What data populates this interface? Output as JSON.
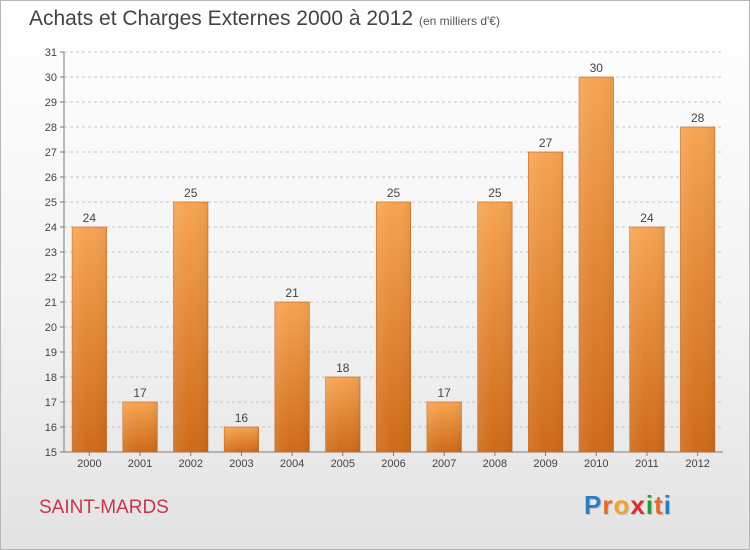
{
  "header": {
    "title": "Achats et Charges Externes 2000 à 2012",
    "unit": "(en milliers d'€)"
  },
  "footer": {
    "location": "SAINT-MARDS",
    "logo": {
      "letters": [
        "P",
        "r",
        "o",
        "x",
        "i",
        "t",
        "i"
      ],
      "colors": [
        "#2a7fc4",
        "#e8692a",
        "#f0a42c",
        "#d8312c",
        "#2a9a3a",
        "#e8692a",
        "#2a7fc4"
      ]
    }
  },
  "colors": {
    "bar_top": "#f6a452",
    "bar_bottom": "#cf6a18",
    "bar_edge": "#c4651a",
    "grid": "#c6c6c6",
    "axis": "#7a7a7a",
    "text": "#444444",
    "location": "#c8354a"
  },
  "chart_data": {
    "type": "bar",
    "title": "Achats et Charges Externes 2000 à 2012",
    "subtitle": "(en milliers d'€)",
    "xlabel": "",
    "ylabel": "",
    "categories": [
      "2000",
      "2001",
      "2002",
      "2003",
      "2004",
      "2005",
      "2006",
      "2007",
      "2008",
      "2009",
      "2010",
      "2011",
      "2012"
    ],
    "values": [
      24,
      17,
      25,
      16,
      21,
      18,
      25,
      17,
      25,
      27,
      30,
      24,
      28
    ],
    "ylim": [
      15,
      31
    ],
    "yticks": [
      15,
      16,
      17,
      18,
      19,
      20,
      21,
      22,
      23,
      24,
      25,
      26,
      27,
      28,
      29,
      30,
      31
    ],
    "grid": true,
    "grid_style": "dashed horizontal",
    "data_labels": true,
    "legend": "none"
  }
}
